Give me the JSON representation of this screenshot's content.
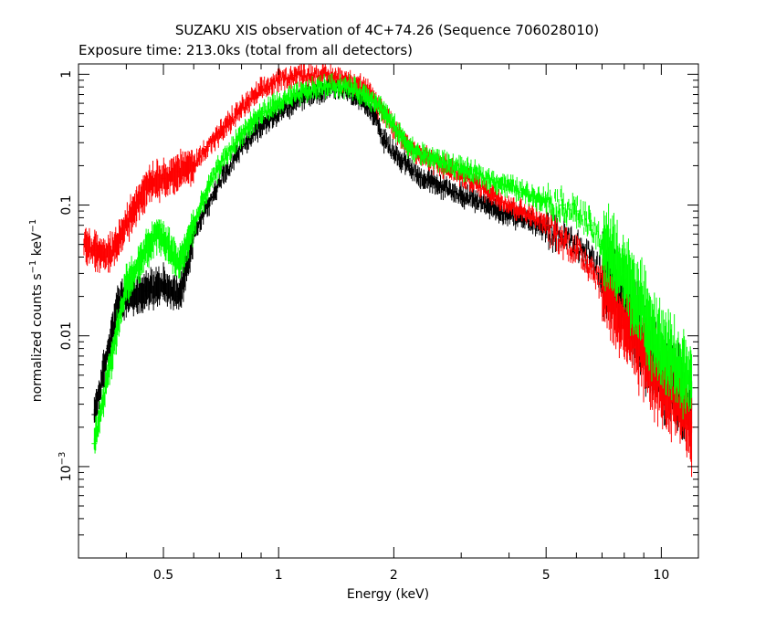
{
  "chart_data": {
    "type": "scatter",
    "title": "SUZAKU XIS observation of 4C+74.26 (Sequence 706028010)",
    "subtitle": "Exposure time: 213.0ks (total from all detectors)",
    "xlabel": "Energy (keV)",
    "ylabel_main": "normalized counts s",
    "ylabel_sup1": "−1",
    "ylabel_mid": " keV",
    "ylabel_sup2": "−1",
    "x_scale": "log",
    "y_scale": "log",
    "xlim": [
      0.3,
      12.5
    ],
    "ylim": [
      0.0002,
      1.2
    ],
    "x_ticks": [
      {
        "value": 0.5,
        "label": "0.5"
      },
      {
        "value": 1,
        "label": "1"
      },
      {
        "value": 2,
        "label": "2"
      },
      {
        "value": 5,
        "label": "5"
      },
      {
        "value": 10,
        "label": "10"
      }
    ],
    "y_ticks": [
      {
        "value": 1,
        "label": "1"
      },
      {
        "value": 0.1,
        "label": "0.1"
      },
      {
        "value": 0.01,
        "label": "0.01"
      },
      {
        "value": 0.001,
        "label": "10",
        "sup": "−3"
      }
    ],
    "grid": false,
    "series": [
      {
        "color": "#000000",
        "x": [
          0.33,
          0.36,
          0.38,
          0.41,
          0.45,
          0.5,
          0.55,
          0.6,
          0.7,
          0.8,
          0.9,
          1.0,
          1.1,
          1.2,
          1.3,
          1.4,
          1.5,
          1.6,
          1.7,
          1.8,
          1.85,
          1.9,
          2.0,
          2.1,
          2.2,
          2.3,
          2.5,
          3.0,
          3.5,
          4.0,
          4.5,
          5.0,
          5.5,
          6.0,
          6.5,
          7.0,
          8.0,
          9.0,
          10.0,
          11.0,
          12.0
        ],
        "y": [
          0.0025,
          0.008,
          0.018,
          0.02,
          0.022,
          0.025,
          0.02,
          0.06,
          0.15,
          0.28,
          0.4,
          0.5,
          0.6,
          0.7,
          0.75,
          0.78,
          0.75,
          0.65,
          0.55,
          0.5,
          0.35,
          0.3,
          0.25,
          0.22,
          0.2,
          0.17,
          0.15,
          0.12,
          0.1,
          0.085,
          0.075,
          0.065,
          0.058,
          0.05,
          0.04,
          0.03,
          0.02,
          0.009,
          0.005,
          0.004,
          0.003
        ]
      },
      {
        "color": "#ff0000",
        "x": [
          0.31,
          0.33,
          0.35,
          0.37,
          0.4,
          0.43,
          0.46,
          0.5,
          0.55,
          0.6,
          0.65,
          0.7,
          0.8,
          0.9,
          1.0,
          1.1,
          1.2,
          1.3,
          1.4,
          1.5,
          1.6,
          1.7,
          1.8,
          1.9,
          2.0,
          2.1,
          2.2,
          2.3,
          2.5,
          3.0,
          3.5,
          4.0,
          4.5,
          5.0,
          5.5,
          6.0,
          6.5,
          7.0,
          8.0,
          9.0,
          10.0,
          11.0,
          12.0
        ],
        "y": [
          0.05,
          0.045,
          0.04,
          0.045,
          0.07,
          0.11,
          0.15,
          0.16,
          0.18,
          0.2,
          0.28,
          0.35,
          0.55,
          0.75,
          0.9,
          0.98,
          1.0,
          0.98,
          0.95,
          0.92,
          0.85,
          0.75,
          0.6,
          0.5,
          0.4,
          0.33,
          0.28,
          0.25,
          0.22,
          0.17,
          0.13,
          0.1,
          0.085,
          0.07,
          0.055,
          0.045,
          0.035,
          0.025,
          0.012,
          0.007,
          0.004,
          0.003,
          0.002
        ]
      },
      {
        "color": "#00ff00",
        "x": [
          0.33,
          0.4,
          0.42,
          0.45,
          0.48,
          0.5,
          0.55,
          0.6,
          0.65,
          0.7,
          0.8,
          0.9,
          1.0,
          1.1,
          1.2,
          1.3,
          1.4,
          1.5,
          1.6,
          1.7,
          1.8,
          1.9,
          2.0,
          2.1,
          2.2,
          2.3,
          2.5,
          3.0,
          3.5,
          4.0,
          4.5,
          5.0,
          5.5,
          6.0,
          6.5,
          7.0,
          8.0,
          9.0,
          10.0,
          11.0,
          12.0
        ],
        "y": [
          0.0015,
          0.025,
          0.03,
          0.045,
          0.06,
          0.055,
          0.035,
          0.07,
          0.13,
          0.2,
          0.35,
          0.5,
          0.6,
          0.68,
          0.75,
          0.8,
          0.82,
          0.8,
          0.75,
          0.68,
          0.62,
          0.5,
          0.4,
          0.33,
          0.28,
          0.25,
          0.23,
          0.19,
          0.16,
          0.14,
          0.12,
          0.11,
          0.1,
          0.09,
          0.07,
          0.05,
          0.03,
          0.015,
          0.008,
          0.006,
          0.004
        ]
      }
    ]
  }
}
